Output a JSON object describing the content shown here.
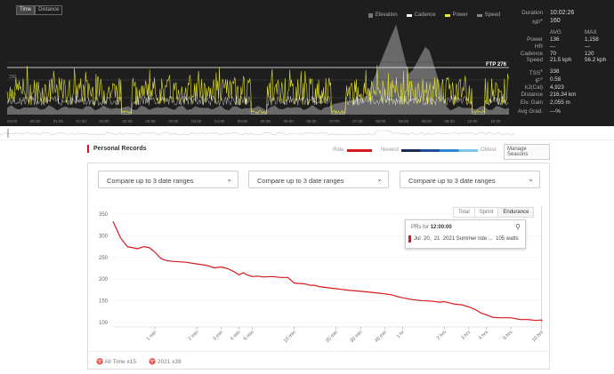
{
  "activity": {
    "toggle": [
      "Time",
      "Distance"
    ],
    "legend": [
      {
        "label": "Elevation",
        "color": "#777777",
        "icon": "square-icon"
      },
      {
        "label": "Cadence",
        "color": "#ffffff",
        "icon": "line-icon"
      },
      {
        "label": "Power",
        "color": "#ecec2e",
        "icon": "line-icon"
      },
      {
        "label": "Speed",
        "color": "#888888",
        "icon": "line-icon"
      }
    ],
    "ftp_label": "FTP 276",
    "time_ticks": [
      "00:00",
      "00:30",
      "01:00",
      "01:30",
      "02:00",
      "02:30",
      "03:00",
      "03:30",
      "04:00",
      "04:30",
      "05:00",
      "05:30",
      "06:00",
      "06:30",
      "07:00",
      "07:30",
      "08:00",
      "08:30",
      "09:00",
      "09:30",
      "10:00",
      "10:30"
    ],
    "power_axis": [
      "200",
      "100"
    ],
    "colors": {
      "power": "#ecec2e",
      "cadence": "#ffffff",
      "elevation": "#777777",
      "ftp_line": "#ffffff"
    }
  },
  "stats": {
    "duration_label": "Duration",
    "duration": "10:02:26",
    "np_label": "NP",
    "np_sup": "®",
    "np": "160",
    "avg_label": "AVG",
    "max_label": "MAX",
    "rows": [
      {
        "label": "Power",
        "avg": "136",
        "max": "1,158"
      },
      {
        "label": "HR",
        "avg": "—",
        "max": "—"
      },
      {
        "label": "Cadence",
        "avg": "70",
        "max": "120"
      },
      {
        "label": "Speed",
        "avg": "21.5 kph",
        "max": "56.2 kph"
      }
    ],
    "totals": [
      {
        "label": "TSS",
        "sup": "®",
        "value": "338"
      },
      {
        "label": "IF",
        "sup": "®",
        "value": "0.58"
      },
      {
        "label": "kJ(Cal)",
        "sup": "",
        "value": "4,923"
      },
      {
        "label": "Distance",
        "sup": "",
        "value": "216.34 km"
      },
      {
        "label": "Elv. Gain",
        "sup": "",
        "value": "2,055 m"
      },
      {
        "label": "Avg Grad.",
        "sup": "",
        "value": "—%"
      }
    ]
  },
  "records": {
    "title": "Personal Records",
    "legend_ride": "Ride",
    "legend_newest": "Newest",
    "legend_oldest": "Oldest",
    "ride_color": "#d8181c",
    "gradient_colors": [
      "#1a2a55",
      "#1f4f9a",
      "#2d86cf",
      "#7cc6ec"
    ],
    "manage_label": "Manage Seasons",
    "selectors": [
      "Compare up to 3 date ranges",
      "Compare up to 3 date ranges",
      "Compare up to 3 date ranges"
    ],
    "tabs": [
      "Total",
      "Sprint",
      "Endurance"
    ],
    "active_tab": "Endurance",
    "tooltip": {
      "title_prefix": "PRs for",
      "title_time": "12:00:00",
      "date_month": "Jul",
      "date_day": "20,",
      "date_year": "21",
      "ride": "2021 Summer ride ...",
      "value": "105 watts"
    },
    "footer": [
      {
        "icon": "trophy-icon",
        "label": "All Time x15"
      },
      {
        "icon": "trophy-icon",
        "label": "2021 x39"
      }
    ]
  },
  "chart_data": {
    "type": "line",
    "title": "",
    "xlabel": "",
    "ylabel": "",
    "x_scale": "log",
    "ylim": [
      90,
      360
    ],
    "yticks": [
      100,
      150,
      200,
      250,
      300,
      350
    ],
    "xtick_labels": [
      "1 min",
      "2 min",
      "3 min",
      "4 min",
      "5 min",
      "10 min",
      "20 min",
      "30 min",
      "45 min",
      "1 hr",
      "2 hrs",
      "3 hrs",
      "4 hrs",
      "6 hrs",
      "10 hrs"
    ],
    "xtick_seconds": [
      60,
      120,
      180,
      240,
      300,
      600,
      1200,
      1800,
      2700,
      3600,
      7200,
      10800,
      14400,
      21600,
      36000
    ],
    "x_seconds": [
      30,
      34,
      38,
      42,
      45,
      50,
      55,
      60,
      66,
      72,
      80,
      90,
      100,
      120,
      140,
      150,
      160,
      180,
      200,
      220,
      240,
      260,
      270,
      300,
      330,
      360,
      420,
      480,
      540,
      600,
      660,
      720,
      780,
      840,
      900,
      1000,
      1200,
      1500,
      1800,
      2100,
      2400,
      2700,
      3000,
      3300,
      3600,
      4200,
      4800,
      5400,
      6000,
      6600,
      7200,
      8400,
      9600,
      10800,
      12000,
      13200,
      14400,
      16000,
      18000,
      21600,
      25200,
      28800,
      32400,
      36000,
      36140
    ],
    "y_watts": [
      333,
      295,
      275,
      272,
      270,
      275,
      272,
      262,
      248,
      243,
      241,
      240,
      239,
      235,
      232,
      229,
      226,
      228,
      224,
      218,
      210,
      215,
      211,
      206,
      207,
      205,
      206,
      204,
      204,
      191,
      190,
      189,
      186,
      186,
      183,
      181,
      178,
      174,
      172,
      170,
      168,
      166,
      164,
      160,
      157,
      153,
      151,
      150,
      149,
      147,
      148,
      143,
      141,
      136,
      130,
      122,
      118,
      112,
      111,
      111,
      107,
      107,
      105,
      106,
      103
    ]
  }
}
